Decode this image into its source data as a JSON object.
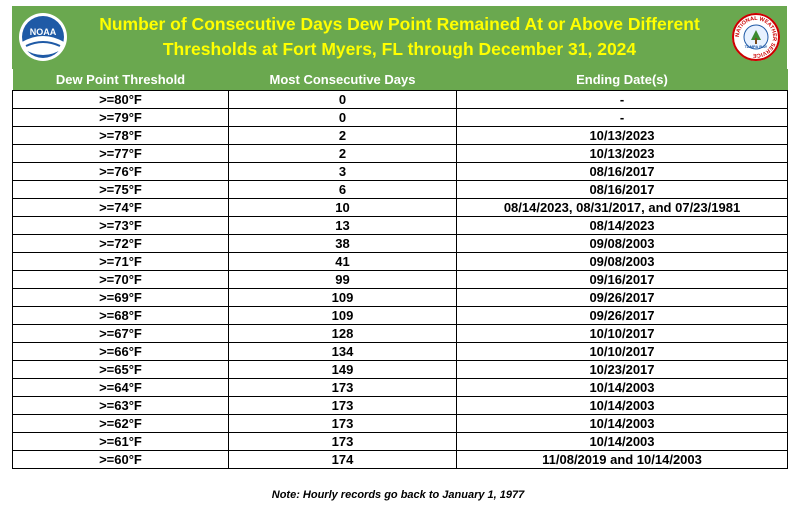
{
  "title_line1": "Number of Consecutive Days Dew Point Remained At or Above Different",
  "title_line2": "Thresholds at Fort Myers, FL through December 31, 2024",
  "logos": {
    "left_text": "NOAA",
    "right_text": "NATIONAL WEATHER SERVICE",
    "right_bottom_text": "TAMPA BAY",
    "noaa_blue": "#1f5aa6",
    "nws_red": "#cc0000"
  },
  "columns": [
    "Dew Point Threshold",
    "Most Consecutive Days",
    "Ending Date(s)"
  ],
  "rows": [
    {
      "threshold": ">=80°F",
      "days": "0",
      "dates": "-"
    },
    {
      "threshold": ">=79°F",
      "days": "0",
      "dates": "-"
    },
    {
      "threshold": ">=78°F",
      "days": "2",
      "dates": "10/13/2023"
    },
    {
      "threshold": ">=77°F",
      "days": "2",
      "dates": "10/13/2023"
    },
    {
      "threshold": ">=76°F",
      "days": "3",
      "dates": "08/16/2017"
    },
    {
      "threshold": ">=75°F",
      "days": "6",
      "dates": "08/16/2017"
    },
    {
      "threshold": ">=74°F",
      "days": "10",
      "dates": "08/14/2023, 08/31/2017, and 07/23/1981"
    },
    {
      "threshold": ">=73°F",
      "days": "13",
      "dates": "08/14/2023"
    },
    {
      "threshold": ">=72°F",
      "days": "38",
      "dates": "09/08/2003"
    },
    {
      "threshold": ">=71°F",
      "days": "41",
      "dates": "09/08/2003"
    },
    {
      "threshold": ">=70°F",
      "days": "99",
      "dates": "09/16/2017"
    },
    {
      "threshold": ">=69°F",
      "days": "109",
      "dates": "09/26/2017"
    },
    {
      "threshold": ">=68°F",
      "days": "109",
      "dates": "09/26/2017"
    },
    {
      "threshold": ">=67°F",
      "days": "128",
      "dates": "10/10/2017"
    },
    {
      "threshold": ">=66°F",
      "days": "134",
      "dates": "10/10/2017"
    },
    {
      "threshold": ">=65°F",
      "days": "149",
      "dates": "10/23/2017"
    },
    {
      "threshold": ">=64°F",
      "days": "173",
      "dates": "10/14/2003"
    },
    {
      "threshold": ">=63°F",
      "days": "173",
      "dates": "10/14/2003"
    },
    {
      "threshold": ">=62°F",
      "days": "173",
      "dates": "10/14/2003"
    },
    {
      "threshold": ">=61°F",
      "days": "173",
      "dates": "10/14/2003"
    },
    {
      "threshold": ">=60°F",
      "days": "174",
      "dates": "11/08/2019 and 10/14/2003"
    }
  ],
  "note": "Note: Hourly records go back to January 1, 1977",
  "colors": {
    "header_green": "#6aa84f",
    "title_yellow": "#ffff00",
    "header_text": "#ffffff"
  }
}
